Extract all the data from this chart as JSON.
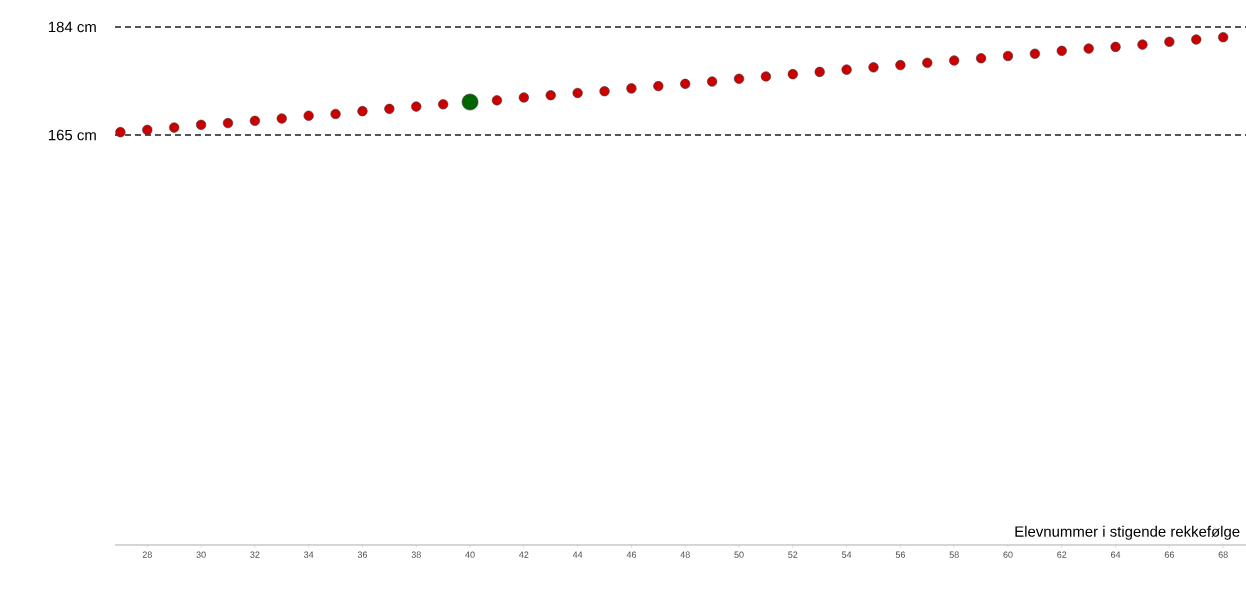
{
  "chart_data": {
    "type": "scatter",
    "xlabel": "Elevnummer i stigende rekkefølge",
    "xlim": [
      26.8,
      68.85
    ],
    "xticks": [
      28,
      30,
      32,
      34,
      36,
      38,
      40,
      42,
      44,
      46,
      48,
      50,
      52,
      54,
      56,
      58,
      60,
      62,
      64,
      66,
      68
    ],
    "ylim": [
      92.9,
      184
    ],
    "tick_labels": "x",
    "grid": false,
    "series": [
      {
        "color": "#cc0000",
        "x": [
          27,
          28,
          29,
          30,
          31,
          32,
          33,
          34,
          35,
          36,
          37,
          38,
          39,
          41,
          42,
          43,
          44,
          45,
          46,
          47,
          48,
          49,
          50,
          51,
          52,
          53,
          54,
          55,
          56,
          57,
          58,
          59,
          60,
          61,
          62,
          63,
          64,
          65,
          66,
          67,
          68
        ],
        "values": [
          165.5,
          165.9,
          166.3,
          166.8,
          167.1,
          167.5,
          167.9,
          168.4,
          168.7,
          169.2,
          169.6,
          170.0,
          170.4,
          171.1,
          171.6,
          172.0,
          172.4,
          172.7,
          173.2,
          173.6,
          174.0,
          174.4,
          174.9,
          175.3,
          175.7,
          176.1,
          176.5,
          176.9,
          177.3,
          177.7,
          178.1,
          178.5,
          178.9,
          179.3,
          179.8,
          180.2,
          180.5,
          180.9,
          181.4,
          181.8,
          182.2
        ]
      },
      {
        "color": "#006400",
        "x": [
          40
        ],
        "values": [
          170.8
        ]
      }
    ],
    "ref_lines": [
      {
        "axis": "y",
        "value": 184,
        "label": "184 cm",
        "color": "#555555",
        "line_style": "dashed"
      },
      {
        "axis": "y",
        "value": 165,
        "label": "165 cm",
        "color": "#555555",
        "line_style": "dashed"
      }
    ]
  }
}
